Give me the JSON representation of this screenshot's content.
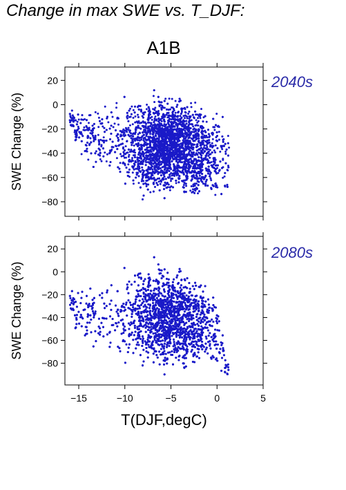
{
  "figure": {
    "title": "Change in max SWE vs. T_DJF:",
    "scenario": "A1B",
    "colors": {
      "points": "#1a1ac8",
      "period_label": "#2a2aa8",
      "axes": "#000000"
    }
  },
  "chart_data": [
    {
      "type": "scatter",
      "panel_label": "2040s",
      "xlabel": "",
      "ylabel": "SWE Change (%)",
      "xlim": [
        -16.5,
        5
      ],
      "ylim": [
        -92,
        31
      ],
      "xticks": [
        -15,
        -10,
        -5,
        0,
        5
      ],
      "yticks": [
        20,
        0,
        -20,
        -40,
        -60,
        -80
      ],
      "yticklabels": [
        "20",
        "0",
        "−20",
        "−40",
        "−60",
        "−80"
      ],
      "xtick_labels_shown": false,
      "grid": false,
      "series": [
        {
          "description_of_cloud": "dense point cloud",
          "x_range": [
            -16,
            1.3
          ],
          "y_range": [
            -90,
            15
          ],
          "upper_envelope": [
            [
              -16,
              -2
            ],
            [
              -15,
              3
            ],
            [
              -14,
              5
            ],
            [
              -12,
              8
            ],
            [
              -10,
              12
            ],
            [
              -8,
              13
            ],
            [
              -6,
              14
            ],
            [
              -4,
              14
            ],
            [
              -2,
              14
            ],
            [
              -1,
              8
            ],
            [
              0,
              4
            ],
            [
              1,
              -6
            ]
          ],
          "lower_envelope": [
            [
              -16,
              -20
            ],
            [
              -15,
              -45
            ],
            [
              -13.5,
              -62
            ],
            [
              -12,
              -65
            ],
            [
              -10,
              -72
            ],
            [
              -8,
              -88
            ],
            [
              -6,
              -82
            ],
            [
              -4,
              -80
            ],
            [
              -2,
              -90
            ],
            [
              0,
              -85
            ],
            [
              1,
              -82
            ]
          ],
          "center": [
            -5,
            -25
          ]
        }
      ]
    },
    {
      "type": "scatter",
      "panel_label": "2080s",
      "xlabel": "T(DJF,degC)",
      "ylabel": "SWE Change (%)",
      "xlim": [
        -16.5,
        5
      ],
      "ylim": [
        -99,
        31
      ],
      "xticks": [
        -15,
        -10,
        -5,
        0,
        5
      ],
      "xticklabels": [
        "−15",
        "−10",
        "−5",
        "0",
        "5"
      ],
      "yticks": [
        20,
        0,
        -20,
        -40,
        -60,
        -80
      ],
      "yticklabels": [
        "20",
        "0",
        "−20",
        "−40",
        "−60",
        "−80"
      ],
      "grid": false,
      "series": [
        {
          "description_of_cloud": "dense point cloud",
          "x_range": [
            -16,
            1.3
          ],
          "y_range": [
            -97,
            16
          ],
          "upper_envelope": [
            [
              -16,
              -15
            ],
            [
              -15,
              -2
            ],
            [
              -14,
              2
            ],
            [
              -12,
              6
            ],
            [
              -10,
              10
            ],
            [
              -8,
              14
            ],
            [
              -6,
              15
            ],
            [
              -4,
              13
            ],
            [
              -2,
              10
            ],
            [
              -1,
              6
            ],
            [
              0,
              -15
            ],
            [
              1,
              -75
            ]
          ],
          "lower_envelope": [
            [
              -16,
              -35
            ],
            [
              -15,
              -72
            ],
            [
              -13,
              -80
            ],
            [
              -12,
              -85
            ],
            [
              -10,
              -88
            ],
            [
              -8,
              -92
            ],
            [
              -6,
              -95
            ],
            [
              -4,
              -96
            ],
            [
              -2,
              -94
            ],
            [
              0,
              -92
            ],
            [
              1,
              -93
            ]
          ],
          "center": [
            -5,
            -45
          ]
        }
      ]
    }
  ]
}
